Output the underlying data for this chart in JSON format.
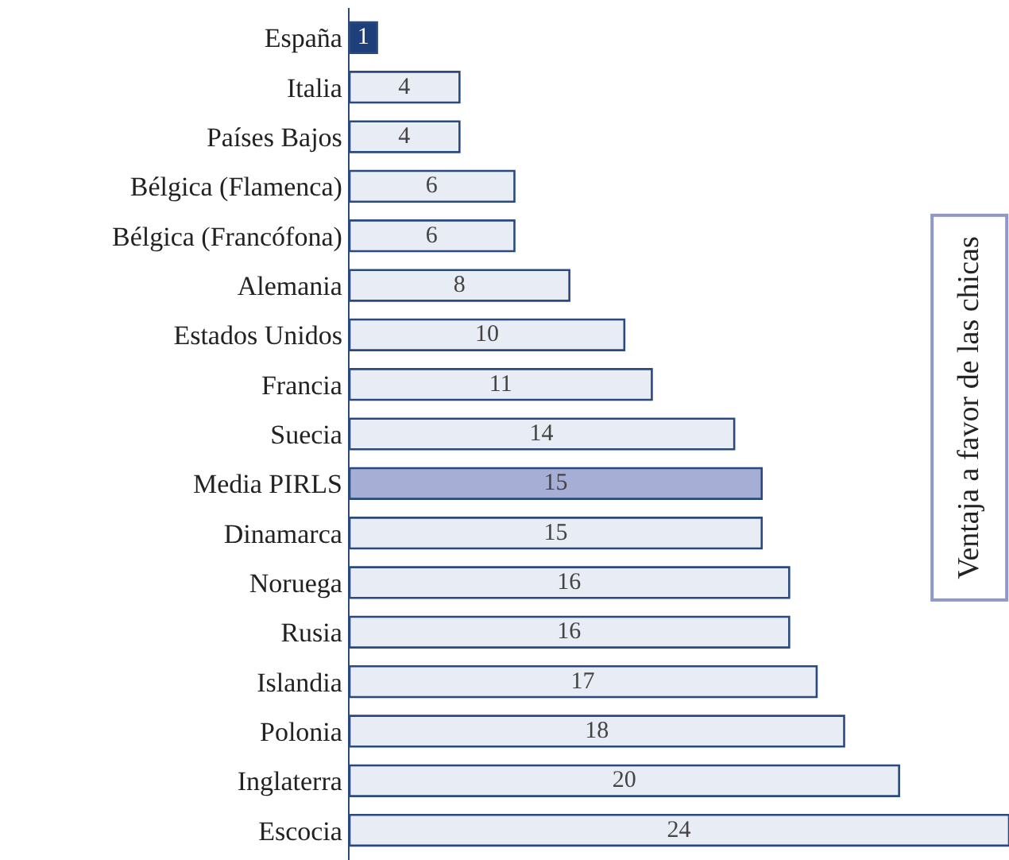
{
  "chart_data": {
    "type": "bar",
    "orientation": "horizontal",
    "categories": [
      "España",
      "Italia",
      "Países Bajos",
      "Bélgica (Flamenca)",
      "Bélgica (Francófona)",
      "Alemania",
      "Estados Unidos",
      "Francia",
      "Suecia",
      "Media PIRLS",
      "Dinamarca",
      "Noruega",
      "Rusia",
      "Islandia",
      "Polonia",
      "Inglaterra",
      "Escocia"
    ],
    "values": [
      1,
      4,
      4,
      6,
      6,
      8,
      10,
      11,
      14,
      15,
      15,
      16,
      16,
      17,
      18,
      20,
      24
    ],
    "colors": [
      "#1f3f7a",
      "#e8ecf4",
      "#e8ecf4",
      "#e8ecf4",
      "#e8ecf4",
      "#e8ecf4",
      "#e8ecf4",
      "#e8ecf4",
      "#e8ecf4",
      "#a6aed6",
      "#e8ecf4",
      "#e8ecf4",
      "#e8ecf4",
      "#e8ecf4",
      "#e8ecf4",
      "#e8ecf4",
      "#e8ecf4"
    ],
    "data_labels": true,
    "annotations": [
      "Ventaja a favor de las chicas"
    ]
  }
}
